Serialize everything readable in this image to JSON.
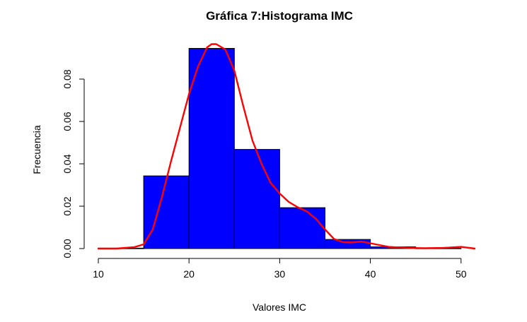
{
  "chart_data": {
    "type": "bar",
    "title": "Gráfica 7:Histograma IMC",
    "xlabel": "Valores IMC",
    "ylabel": "Frecuencia",
    "xlim": [
      10,
      51.5
    ],
    "ylim": [
      0,
      0.097
    ],
    "x_ticks": [
      10,
      20,
      30,
      40,
      50
    ],
    "x_tick_labels": [
      "10",
      "20",
      "30",
      "40",
      "50"
    ],
    "y_ticks": [
      0,
      0.02,
      0.04,
      0.06,
      0.08
    ],
    "y_tick_labels": [
      "0.00",
      "0.02",
      "0.04",
      "0.06",
      "0.08"
    ],
    "grid": false,
    "bins": [
      {
        "start": 10,
        "end": 15,
        "value": 0.0002
      },
      {
        "start": 15,
        "end": 20,
        "value": 0.0343
      },
      {
        "start": 20,
        "end": 25,
        "value": 0.0945
      },
      {
        "start": 25,
        "end": 30,
        "value": 0.0468
      },
      {
        "start": 30,
        "end": 35,
        "value": 0.0193
      },
      {
        "start": 35,
        "end": 40,
        "value": 0.0043
      },
      {
        "start": 40,
        "end": 45,
        "value": 0.0008
      },
      {
        "start": 45,
        "end": 50,
        "value": 0.0002
      }
    ],
    "density_curve": {
      "x": [
        10,
        12,
        14,
        15,
        16,
        17,
        18,
        19,
        20,
        21,
        22,
        22.5,
        23,
        24,
        25,
        26,
        27,
        28,
        29,
        30,
        31,
        32,
        33,
        34,
        35,
        36,
        37,
        38,
        39,
        40,
        42,
        44,
        46,
        48,
        50,
        51.5
      ],
      "y": [
        0.0,
        0.0,
        0.0007,
        0.002,
        0.009,
        0.024,
        0.041,
        0.057,
        0.073,
        0.086,
        0.095,
        0.0965,
        0.0965,
        0.094,
        0.084,
        0.067,
        0.051,
        0.04,
        0.031,
        0.026,
        0.022,
        0.0195,
        0.0175,
        0.014,
        0.009,
        0.0045,
        0.003,
        0.0029,
        0.0033,
        0.0025,
        0.0008,
        0.0003,
        0.0002,
        0.0003,
        0.0008,
        0.0
      ]
    },
    "colors": {
      "bar_fill": "#0000ff",
      "bar_stroke": "#000000",
      "curve": "#ff0000"
    }
  }
}
